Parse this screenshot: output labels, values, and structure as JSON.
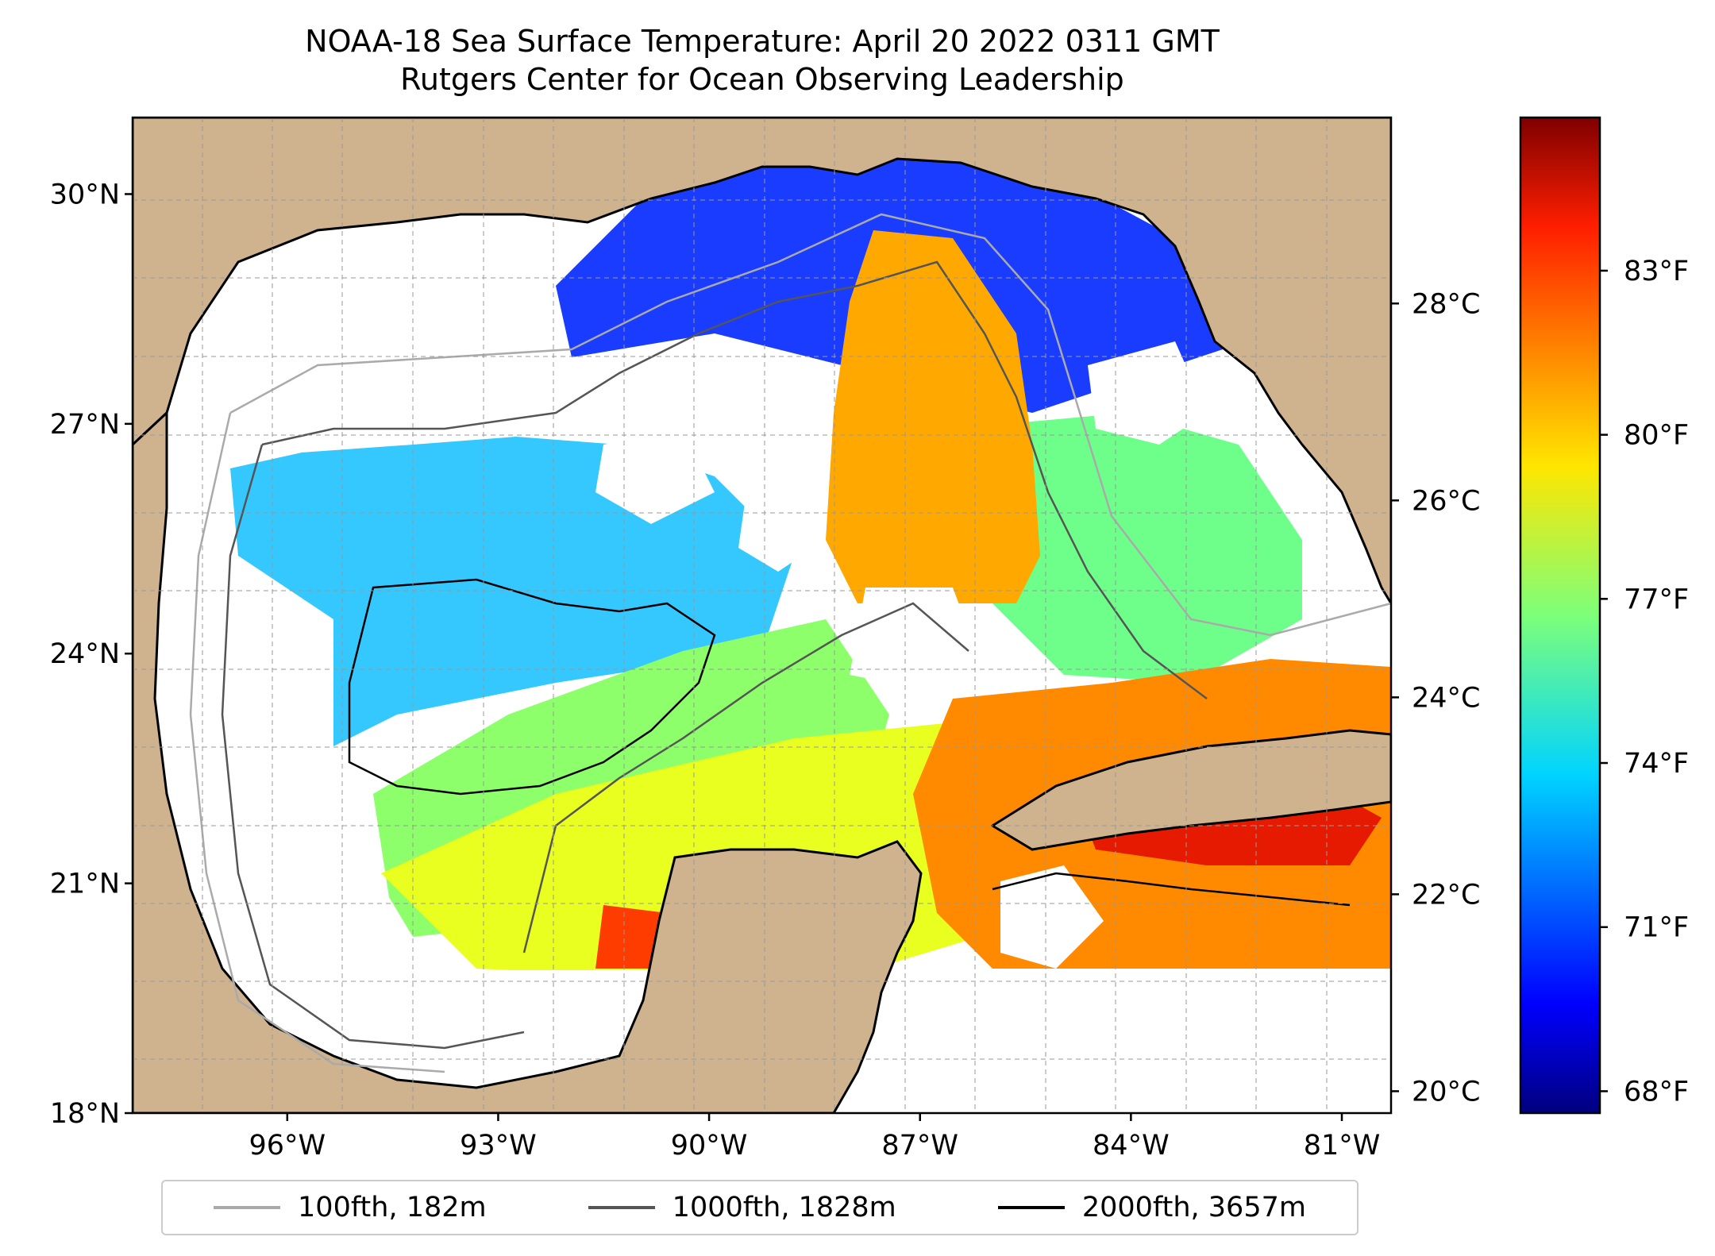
{
  "title": {
    "line1": "NOAA-18 Sea Surface Temperature: April 20 2022 0311 GMT",
    "line2": "Rutgers Center for Ocean Observing Leadership"
  },
  "map": {
    "extent": {
      "lon_min": -98.2,
      "lon_max": -80.3,
      "lat_min": 18.0,
      "lat_max": 31.0
    },
    "lat_ticks": [
      {
        "value": 30,
        "label": "30°N"
      },
      {
        "value": 27,
        "label": "27°N"
      },
      {
        "value": 24,
        "label": "24°N"
      },
      {
        "value": 21,
        "label": "21°N"
      },
      {
        "value": 18,
        "label": "18°N"
      }
    ],
    "lon_ticks": [
      {
        "value": -96,
        "label": "96°W"
      },
      {
        "value": -93,
        "label": "93°W"
      },
      {
        "value": -90,
        "label": "90°W"
      },
      {
        "value": -87,
        "label": "87°W"
      },
      {
        "value": -84,
        "label": "84°W"
      },
      {
        "value": -81,
        "label": "81°W"
      }
    ],
    "land_color": "#cfb38e",
    "no_data_color": "#ffffff",
    "gridlines": true
  },
  "colorbar": {
    "colormap": "jet",
    "celsius_ticks": [
      {
        "value": 28,
        "label": "28°C"
      },
      {
        "value": 26,
        "label": "26°C"
      },
      {
        "value": 24,
        "label": "24°C"
      },
      {
        "value": 22,
        "label": "22°C"
      },
      {
        "value": 20,
        "label": "20°C"
      }
    ],
    "fahrenheit_ticks": [
      {
        "value": 83,
        "label": "83°F"
      },
      {
        "value": 80,
        "label": "80°F"
      },
      {
        "value": 77,
        "label": "77°F"
      },
      {
        "value": 74,
        "label": "74°F"
      },
      {
        "value": 71,
        "label": "71°F"
      },
      {
        "value": 68,
        "label": "68°F"
      }
    ],
    "range_f": [
      67.6,
      85.8
    ]
  },
  "legend": [
    {
      "label": "100fth, 182m",
      "color": "#aaaaaa"
    },
    {
      "label": "1000fth, 1828m",
      "color": "#555555"
    },
    {
      "label": "2000fth, 3657m",
      "color": "#000000"
    }
  ]
}
